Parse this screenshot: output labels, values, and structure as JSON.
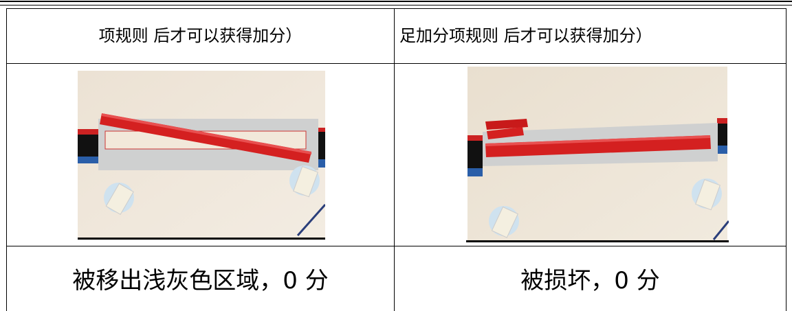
{
  "table": {
    "rows": [
      [
        "项规则 后才可以获得加分）",
        "足加分项规则 后才可以获得加分）"
      ],
      [
        "被移出浅灰色区域，0 分",
        "被损坏，0 分"
      ]
    ]
  }
}
